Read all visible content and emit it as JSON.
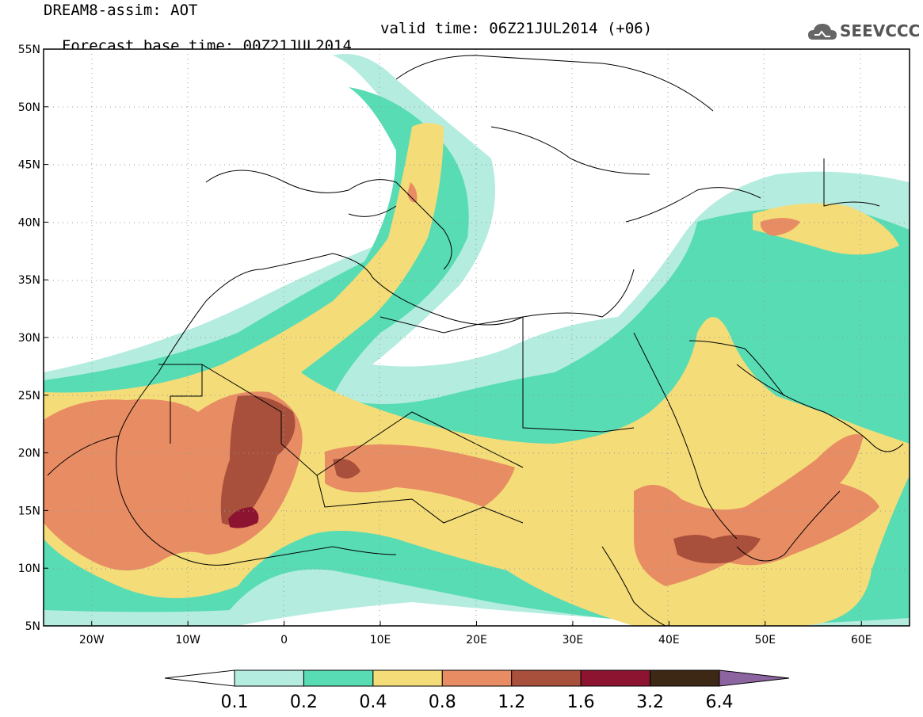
{
  "title": {
    "line1": "DREAM8-assim: AOT",
    "line2_base": "Forecast base time: 00Z21JUL2014",
    "line2_valid": "valid time: 06Z21JUL2014 (+06)"
  },
  "logo": {
    "text": "SEEVCCC",
    "icon": "cloud-icon"
  },
  "map_axes": {
    "lon_range": [
      -25,
      65
    ],
    "lat_range": [
      5,
      55
    ],
    "lat_ticks": [
      {
        "value": 55,
        "label": "55N"
      },
      {
        "value": 50,
        "label": "50N"
      },
      {
        "value": 45,
        "label": "45N"
      },
      {
        "value": 40,
        "label": "40N"
      },
      {
        "value": 35,
        "label": "35N"
      },
      {
        "value": 30,
        "label": "30N"
      },
      {
        "value": 25,
        "label": "25N"
      },
      {
        "value": 20,
        "label": "20N"
      },
      {
        "value": 15,
        "label": "15N"
      },
      {
        "value": 10,
        "label": "10N"
      },
      {
        "value": 5,
        "label": "5N"
      }
    ],
    "lon_ticks": [
      {
        "value": -20,
        "label": "20W"
      },
      {
        "value": -10,
        "label": "10W"
      },
      {
        "value": 0,
        "label": "0"
      },
      {
        "value": 10,
        "label": "10E"
      },
      {
        "value": 20,
        "label": "20E"
      },
      {
        "value": 30,
        "label": "30E"
      },
      {
        "value": 40,
        "label": "40E"
      },
      {
        "value": 50,
        "label": "50E"
      },
      {
        "value": 60,
        "label": "60E"
      }
    ],
    "grid": "dotted"
  },
  "colorbar": {
    "labels": [
      "0.1",
      "0.2",
      "0.4",
      "0.8",
      "1.2",
      "1.6",
      "3.2",
      "6.4"
    ],
    "colors": [
      "#ffffff",
      "#b4ece0",
      "#58dcb4",
      "#f4dc78",
      "#e88c64",
      "#a8503c",
      "#8c1430",
      "#3c2814",
      "#8c64a0"
    ]
  }
}
